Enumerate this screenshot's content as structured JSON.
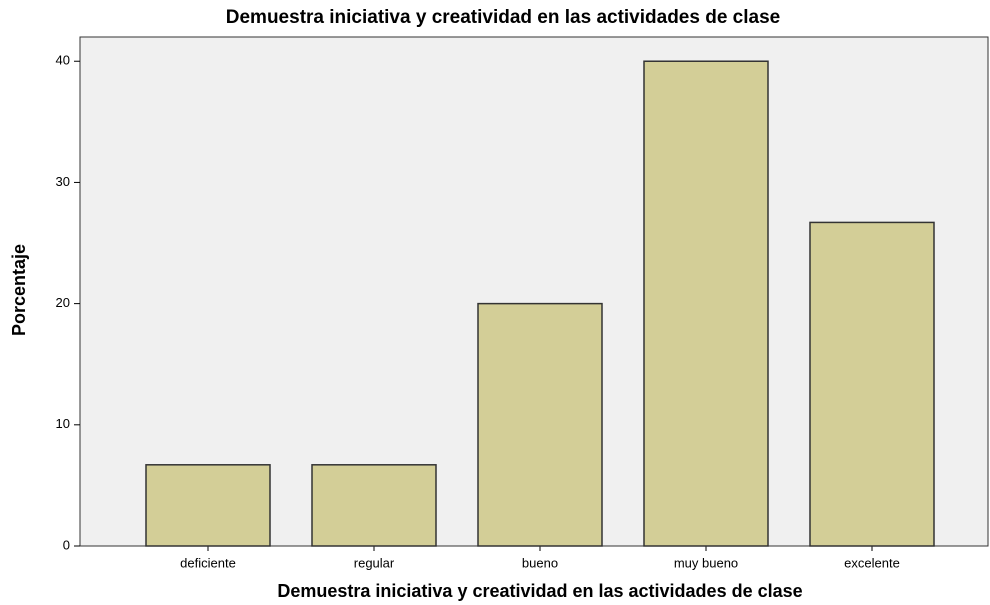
{
  "chart_data": {
    "type": "bar",
    "title": "Demuestra iniciativa y creatividad en las actividades de clase",
    "x_label": "Demuestra iniciativa y creatividad en las actividades de clase",
    "y_label": "Porcentaje",
    "categories": [
      "deficiente",
      "regular",
      "bueno",
      "muy bueno",
      "excelente"
    ],
    "values": [
      6.7,
      6.7,
      20,
      40,
      26.7
    ],
    "color": "#d3ce97",
    "ylim": [
      0,
      42
    ],
    "yticks": [
      0,
      10,
      20,
      30,
      40
    ],
    "grid": false
  }
}
